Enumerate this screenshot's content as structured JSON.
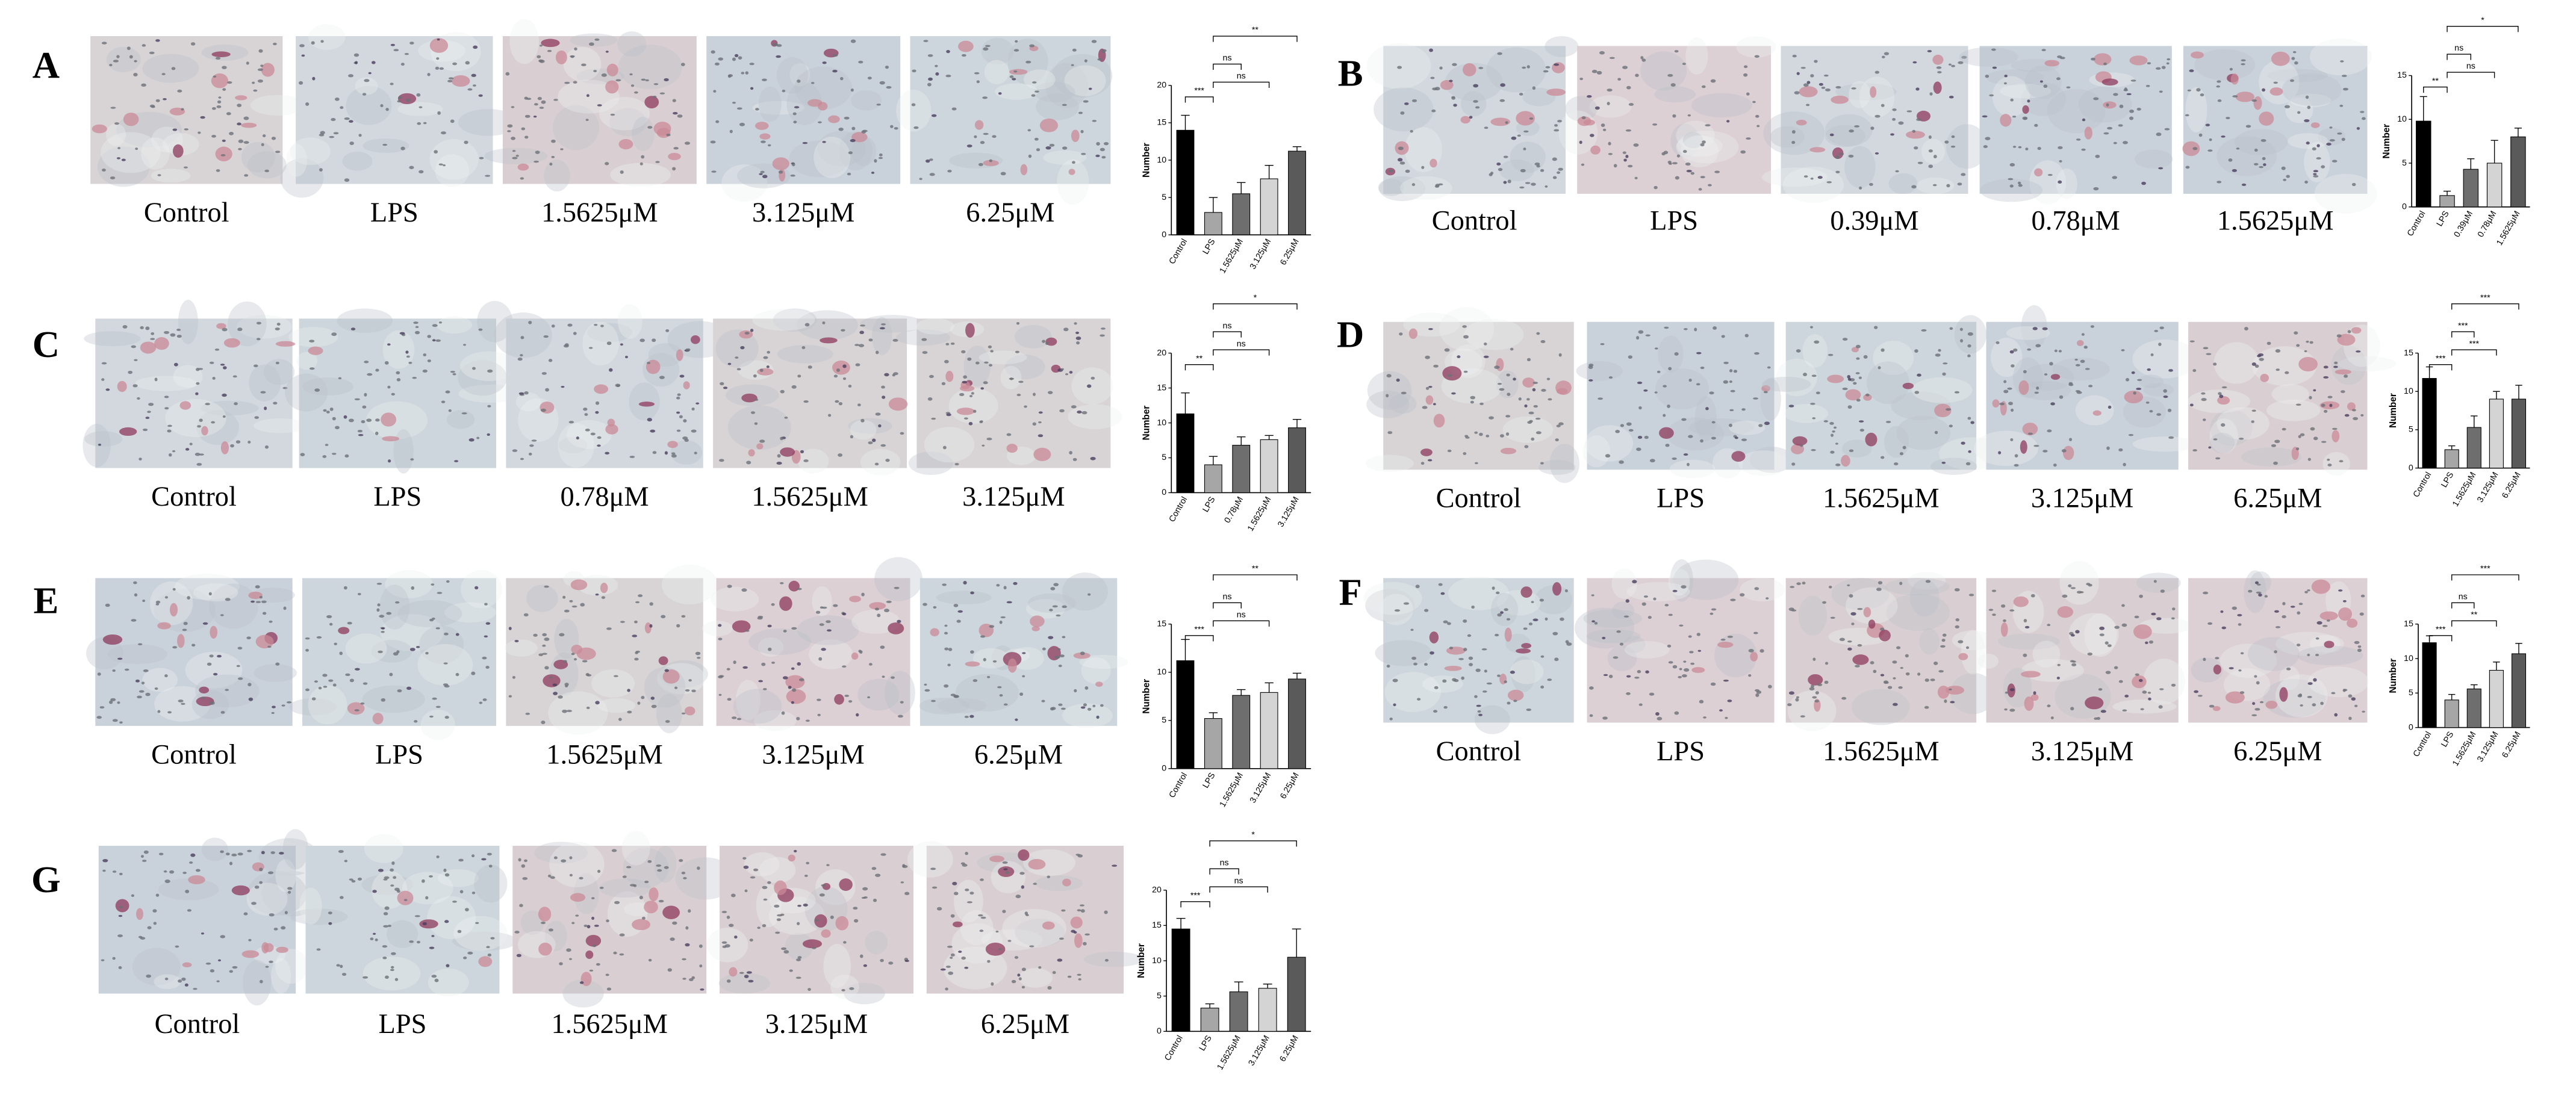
{
  "chart_data": [
    {
      "type": "bar",
      "panel": "A",
      "image_labels": [
        "Control",
        "LPS",
        "1.5625μM",
        "3.125μM",
        "6.25μM"
      ],
      "categories": [
        "Control",
        "LPS",
        "1.5625μM",
        "3.125μM",
        "6.25μM"
      ],
      "values": [
        14,
        3,
        5.5,
        7.5,
        11.2
      ],
      "errors": [
        2,
        2,
        1.5,
        1.8,
        0.6
      ],
      "colors": [
        "#000000",
        "#a6a6a6",
        "#6e6e6e",
        "#d4d4d4",
        "#5a5a5a"
      ],
      "y_label": "Number",
      "ylim": [
        0,
        20
      ],
      "yticks": [
        0,
        5,
        10,
        15,
        20
      ],
      "annotations": [
        "***",
        "ns",
        "ns",
        "**"
      ]
    },
    {
      "type": "bar",
      "panel": "B",
      "image_labels": [
        "Control",
        "LPS",
        "0.39μM",
        "0.78μM",
        "1.5625μM"
      ],
      "categories": [
        "Control",
        "LPS",
        "0.39μM",
        "0.78μM",
        "1.5625μM"
      ],
      "values": [
        9.8,
        1.3,
        4.3,
        5.0,
        8.0
      ],
      "errors": [
        2.8,
        0.5,
        1.2,
        2.6,
        1.0
      ],
      "colors": [
        "#000000",
        "#a6a6a6",
        "#6e6e6e",
        "#d4d4d4",
        "#5a5a5a"
      ],
      "y_label": "Number",
      "ylim": [
        0,
        15
      ],
      "yticks": [
        0,
        5,
        10,
        15
      ],
      "annotations": [
        "**",
        "ns",
        "ns",
        "*"
      ]
    },
    {
      "type": "bar",
      "panel": "C",
      "image_labels": [
        "Control",
        "LPS",
        "0.78μM",
        "1.5625μM",
        "3.125μM"
      ],
      "categories": [
        "Control",
        "LPS",
        "0.78μM",
        "1.5625μM",
        "3.125μM"
      ],
      "values": [
        11.3,
        4,
        6.8,
        7.6,
        9.3
      ],
      "errors": [
        3,
        1.2,
        1.2,
        0.6,
        1.2
      ],
      "colors": [
        "#000000",
        "#a6a6a6",
        "#6e6e6e",
        "#d4d4d4",
        "#5a5a5a"
      ],
      "y_label": "Number",
      "ylim": [
        0,
        20
      ],
      "yticks": [
        0,
        5,
        10,
        15,
        20
      ],
      "annotations": [
        "**",
        "ns",
        "ns",
        "*"
      ]
    },
    {
      "type": "bar",
      "panel": "D",
      "image_labels": [
        "Control",
        "LPS",
        "1.5625μM",
        "3.125μM",
        "6.25μM"
      ],
      "categories": [
        "Control",
        "LPS",
        "1.5625μM",
        "3.125μM",
        "6.25μM"
      ],
      "values": [
        11.7,
        2.4,
        5.3,
        9.0,
        9.0
      ],
      "errors": [
        1.5,
        0.5,
        1.5,
        1.0,
        1.8
      ],
      "colors": [
        "#000000",
        "#a6a6a6",
        "#6e6e6e",
        "#d4d4d4",
        "#5a5a5a"
      ],
      "y_label": "Number",
      "ylim": [
        0,
        15
      ],
      "yticks": [
        0,
        5,
        10,
        15
      ],
      "annotations": [
        "***",
        "***",
        "***",
        "***"
      ]
    },
    {
      "type": "bar",
      "panel": "E",
      "image_labels": [
        "Control",
        "LPS",
        "1.5625μM",
        "3.125μM",
        "6.25μM"
      ],
      "categories": [
        "Control",
        "LPS",
        "1.5625μM",
        "3.125μM",
        "6.25μM"
      ],
      "values": [
        11.2,
        5.2,
        7.6,
        7.9,
        9.3
      ],
      "errors": [
        2.2,
        0.6,
        0.6,
        1.0,
        0.6
      ],
      "colors": [
        "#000000",
        "#a6a6a6",
        "#6e6e6e",
        "#d4d4d4",
        "#5a5a5a"
      ],
      "y_label": "Number",
      "ylim": [
        0,
        15
      ],
      "yticks": [
        0,
        5,
        10,
        15
      ],
      "annotations": [
        "***",
        "ns",
        "ns",
        "**"
      ]
    },
    {
      "type": "bar",
      "panel": "F",
      "image_labels": [
        "Control",
        "LPS",
        "1.5625μM",
        "3.125μM",
        "6.25μM"
      ],
      "categories": [
        "Control",
        "LPS",
        "1.5625μM",
        "3.125μM",
        "6.25μM"
      ],
      "values": [
        12.3,
        4,
        5.6,
        8.3,
        10.7
      ],
      "errors": [
        1.0,
        0.8,
        0.6,
        1.2,
        1.5
      ],
      "colors": [
        "#000000",
        "#a6a6a6",
        "#6e6e6e",
        "#d4d4d4",
        "#5a5a5a"
      ],
      "y_label": "Number",
      "ylim": [
        0,
        15
      ],
      "yticks": [
        0,
        5,
        10,
        15
      ],
      "annotations": [
        "***",
        "ns",
        "**",
        "***"
      ]
    },
    {
      "type": "bar",
      "panel": "G",
      "image_labels": [
        "Control",
        "LPS",
        "1.5625μM",
        "3.125μM",
        "6.25μM"
      ],
      "categories": [
        "Control",
        "LPS",
        "1.5625μM",
        "3.125μM",
        "6.25μM"
      ],
      "values": [
        14.5,
        3.3,
        5.6,
        6.1,
        10.5
      ],
      "errors": [
        1.5,
        0.6,
        1.4,
        0.6,
        4
      ],
      "colors": [
        "#000000",
        "#a6a6a6",
        "#6e6e6e",
        "#d4d4d4",
        "#5a5a5a"
      ],
      "y_label": "Number",
      "ylim": [
        0,
        20
      ],
      "yticks": [
        0,
        5,
        10,
        15,
        20
      ],
      "annotations": [
        "***",
        "ns",
        "ns",
        "*"
      ]
    }
  ]
}
